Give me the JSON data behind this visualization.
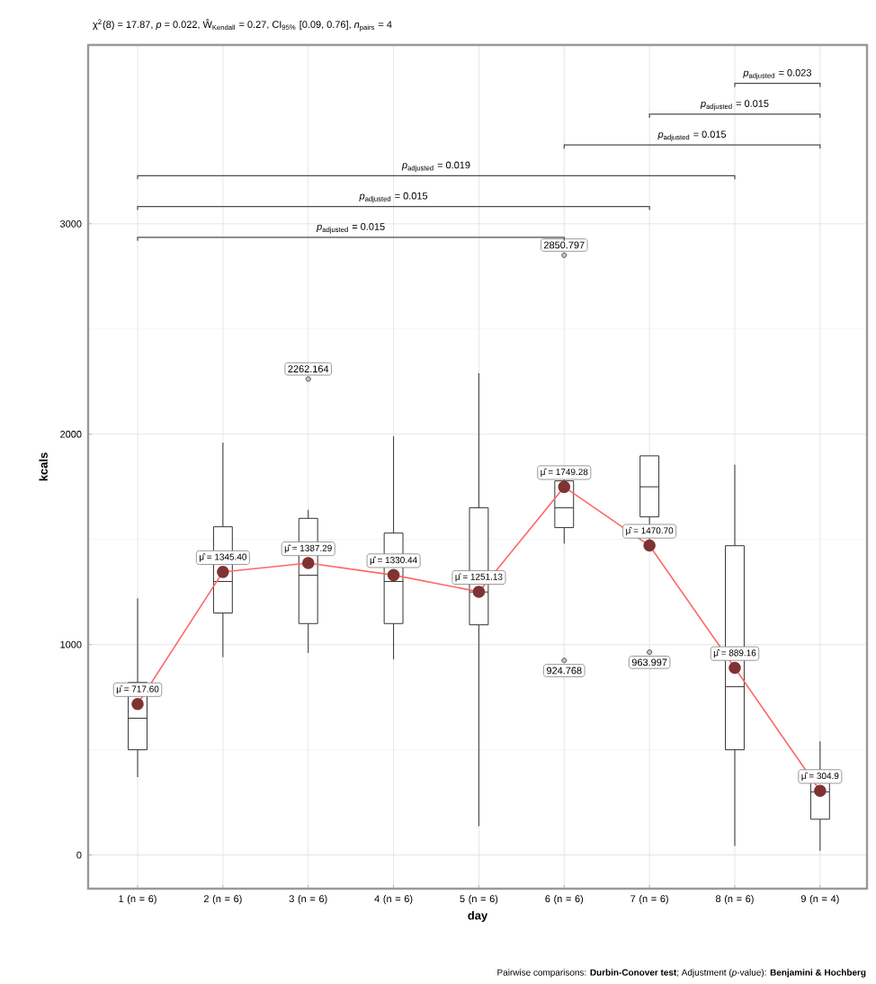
{
  "chart_data": {
    "type": "box",
    "subtitle": "χ$^{2}$(8) = 17.87, *p* = 0.022, Ŵ$_{Kendall}$ = 0.27, CI$_{95%}$ [0.09, 0.76], *n*$_{pairs}$ = 4",
    "xlabel": "day",
    "ylabel": "kcals",
    "categories": [
      "1 (n = 6)",
      "2 (n = 6)",
      "3 (n = 6)",
      "4 (n = 6)",
      "5 (n = 6)",
      "6 (n = 6)",
      "7 (n = 6)",
      "8 (n = 6)",
      "9 (n = 4)"
    ],
    "ylim": [
      -160,
      3850
    ],
    "yticks": [
      0,
      1000,
      2000,
      3000
    ],
    "grid": true,
    "marker": "circle",
    "series": [
      {
        "color": "#333333",
        "boxes": [
          {
            "low": 370,
            "q1": 500,
            "median": 650,
            "q3": 820,
            "high": 1220
          },
          {
            "low": 940,
            "q1": 1150,
            "median": 1300,
            "q3": 1560,
            "high": 1960
          },
          {
            "low": 960,
            "q1": 1100,
            "median": 1330,
            "q3": 1600,
            "high": 1640,
            "outliers": [
              2262.164
            ]
          },
          {
            "low": 930,
            "q1": 1100,
            "median": 1300,
            "q3": 1530,
            "high": 1990
          },
          {
            "low": 137,
            "q1": 1094,
            "median": 1250,
            "q3": 1650,
            "high": 2290
          },
          {
            "low": 1480,
            "q1": 1556,
            "median": 1650,
            "q3": 1778,
            "high": 1800,
            "outliers": [
              2850.797,
              924.768
            ]
          },
          {
            "low": 1450,
            "q1": 1607,
            "median": 1750,
            "q3": 1897,
            "high": 1897,
            "outliers": [
              963.997
            ]
          },
          {
            "low": 43,
            "q1": 500,
            "median": 800,
            "q3": 1470,
            "high": 1855
          },
          {
            "low": 20,
            "q1": 170,
            "median": 300,
            "q3": 400,
            "high": 540
          }
        ]
      },
      {
        "type": "line",
        "color": "#ff6666",
        "values": [
          717.6,
          1345.4,
          1387.29,
          1330.44,
          1251.13,
          1749.28,
          1470.7,
          889.16,
          304.9
        ],
        "value_labels": [
          "μ̂ = 717.60",
          "μ̂ = 1345.40",
          "μ̂ = 1387.29",
          "μ̂ = 1330.44",
          "μ̂ = 1251.13",
          "μ̂ = 1749.28",
          "μ̂ = 1470.70",
          "μ̂ = 889.16",
          "μ̂ = 304.9"
        ]
      }
    ],
    "annotations": [
      "*p*$_{adjusted}$ = 0.015",
      "*p*$_{adjusted}$ = 0.015",
      "*p*$_{adjusted}$ = 0.019",
      "*p*$_{adjusted}$ = 0.015",
      "*p*$_{adjusted}$ = 0.015",
      "*p*$_{adjusted}$ = 0.023",
      "2262.164",
      "2850.797",
      "924.768",
      "963.997",
      "Pairwise comparisons: **Durbin-Conover test**; Adjustment (*p*-value): **Benjamini & Hochberg**"
    ]
  }
}
